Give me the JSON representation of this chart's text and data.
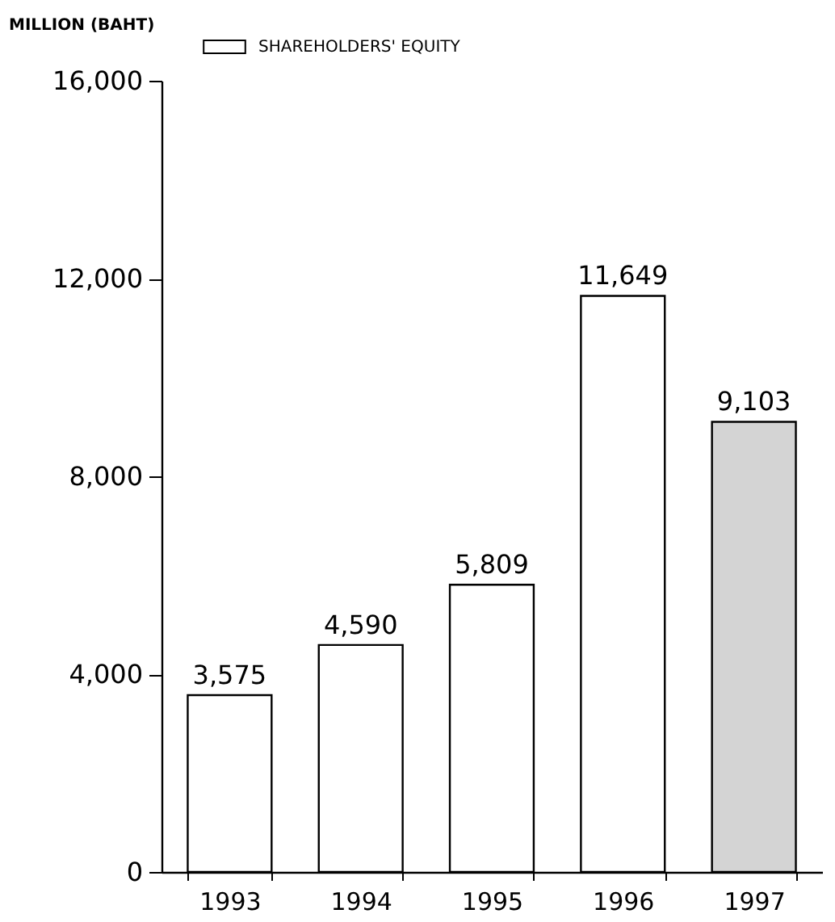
{
  "chart_data": {
    "type": "bar",
    "ylabel": "MILLION (BAHT)",
    "categories": [
      "1993",
      "1994",
      "1995",
      "1996",
      "1997"
    ],
    "series": [
      {
        "name": "SHAREHOLDERS' EQUITY",
        "colors": [
          "#ffffff",
          "#ffffff",
          "#ffffff",
          "#ffffff",
          "#d4d4d4"
        ],
        "values": [
          3575,
          4590,
          5809,
          11649,
          9103
        ],
        "value_labels": [
          "3,575",
          "4,590",
          "5,809",
          "11,649",
          "9,103"
        ]
      }
    ],
    "ylim": [
      0,
      16000
    ],
    "yticks": [
      {
        "value": 0,
        "label": "0"
      },
      {
        "value": 4000,
        "label": "4,000"
      },
      {
        "value": 8000,
        "label": "8,000"
      },
      {
        "value": 12000,
        "label": "12,000"
      },
      {
        "value": 16000,
        "label": "16,000"
      }
    ],
    "legend": "top",
    "grid": false
  }
}
